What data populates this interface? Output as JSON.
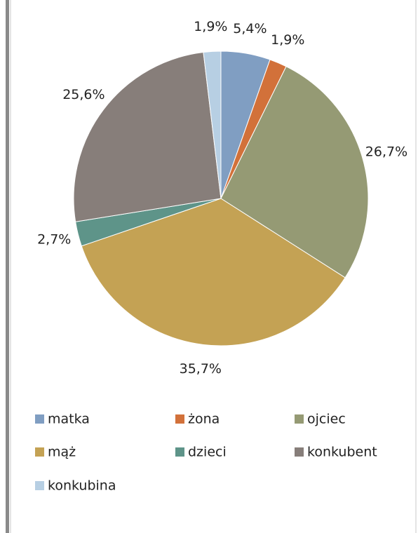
{
  "chart_data": {
    "type": "pie",
    "categories": [
      "matka",
      "żona",
      "ojciec",
      "mąż",
      "dzieci",
      "konkubent",
      "konkubina"
    ],
    "values": [
      5.4,
      1.9,
      26.7,
      35.7,
      2.7,
      25.6,
      1.9
    ],
    "value_labels": [
      "5,4%",
      "1,9%",
      "26,7%",
      "35,7%",
      "2,7%",
      "25,6%",
      "1,9%"
    ],
    "colors": [
      "#809EC2",
      "#D2713A",
      "#959A74",
      "#C4A254",
      "#5E9489",
      "#877E7A",
      "#B7CFE3"
    ],
    "legend": "bottom"
  }
}
